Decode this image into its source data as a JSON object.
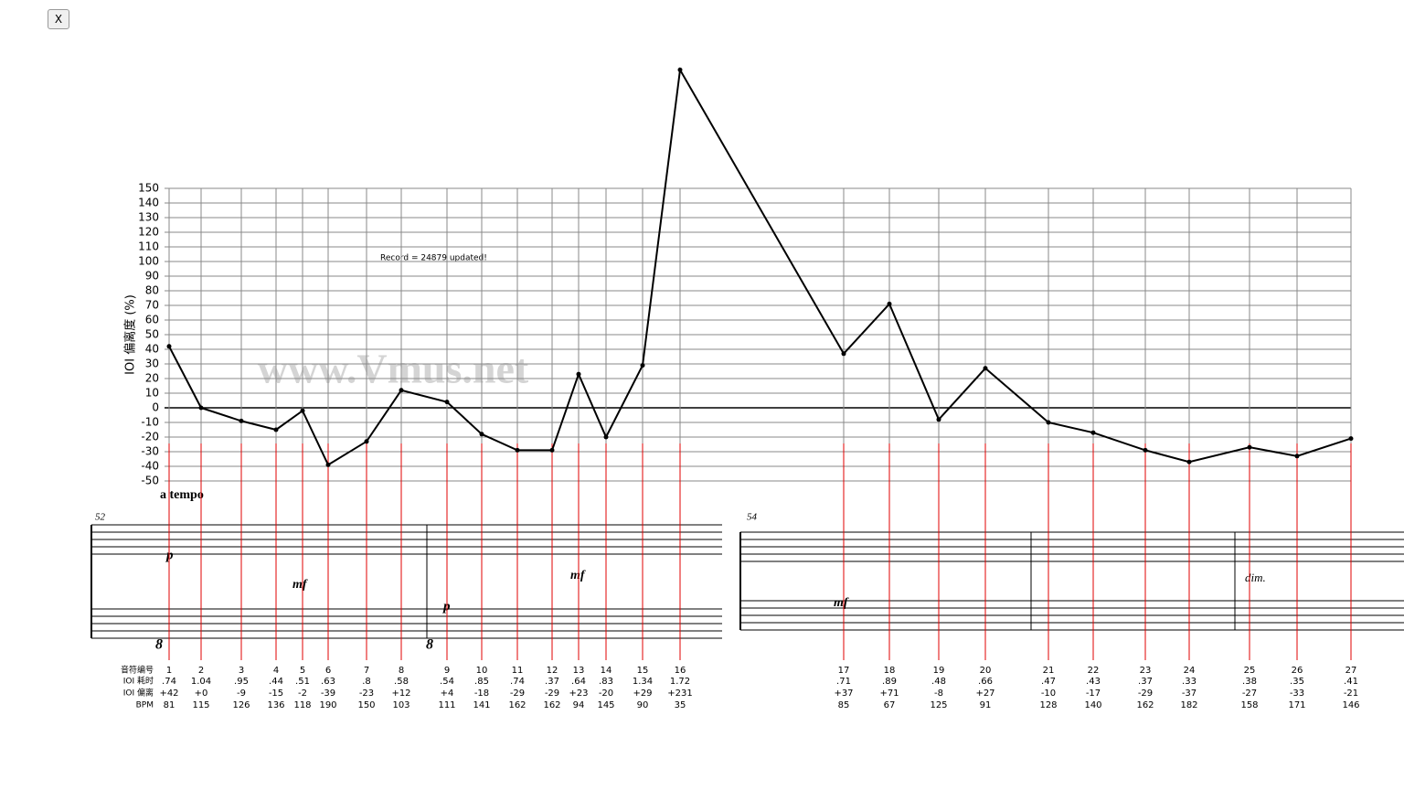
{
  "close_button": "X",
  "status": "Record = 24879 updated!",
  "watermark": "www.Vmus.net",
  "score": {
    "tempo": "a tempo",
    "measures": [
      "52",
      "54"
    ],
    "dynamics": [
      "p",
      "mf",
      "mf",
      "p",
      "mf",
      "dim."
    ],
    "octave": [
      "8",
      "8"
    ]
  },
  "chart_data": {
    "type": "line",
    "y_label": "IOI 偏离度 (%)",
    "categories": [
      "1",
      "2",
      "3",
      "4",
      "5",
      "6",
      "7",
      "8",
      "9",
      "10",
      "11",
      "12",
      "13",
      "14",
      "15",
      "16",
      "17",
      "18",
      "19",
      "20",
      "21",
      "22",
      "23",
      "24",
      "25",
      "26",
      "27"
    ],
    "values": [
      42,
      0,
      -9,
      -15,
      -2,
      -39,
      -23,
      12,
      4,
      -18,
      -29,
      -29,
      23,
      -20,
      29,
      231,
      37,
      71,
      -8,
      27,
      -10,
      -17,
      -29,
      -37,
      -27,
      -33,
      -21
    ],
    "value_labels": [
      "+42",
      "+0",
      "-9",
      "-15",
      "-2",
      "-39",
      "-23",
      "+12",
      "+4",
      "-18",
      "-29",
      "-29",
      "+23",
      "-20",
      "+29",
      "+231",
      "+37",
      "+71",
      "-8",
      "+27",
      "-10",
      "-17",
      "-29",
      "-37",
      "-27",
      "-33",
      "-21"
    ],
    "color": "#000000",
    "ylim": [
      -50,
      150
    ],
    "yticks": [
      -50,
      -40,
      -30,
      -20,
      -10,
      0,
      10,
      20,
      30,
      40,
      50,
      60,
      70,
      80,
      90,
      100,
      110,
      120,
      130,
      140,
      150
    ],
    "grid": true,
    "table": {
      "row_labels": [
        "音符编号",
        "IOI 耗时",
        "IOI 偏离",
        "BPM"
      ],
      "ioi_time": [
        ".74",
        "1.04",
        ".95",
        ".44",
        ".51",
        ".63",
        ".8",
        ".58",
        ".54",
        ".85",
        ".74",
        ".37",
        ".64",
        ".83",
        "1.34",
        "1.72",
        ".71",
        ".89",
        ".48",
        ".66",
        ".47",
        ".43",
        ".37",
        ".33",
        ".38",
        ".35",
        ".41"
      ],
      "bpm": [
        81,
        115,
        126,
        136,
        118,
        190,
        150,
        103,
        111,
        141,
        162,
        162,
        94,
        145,
        90,
        35,
        85,
        67,
        125,
        91,
        128,
        140,
        162,
        182,
        158,
        171,
        146
      ]
    }
  }
}
